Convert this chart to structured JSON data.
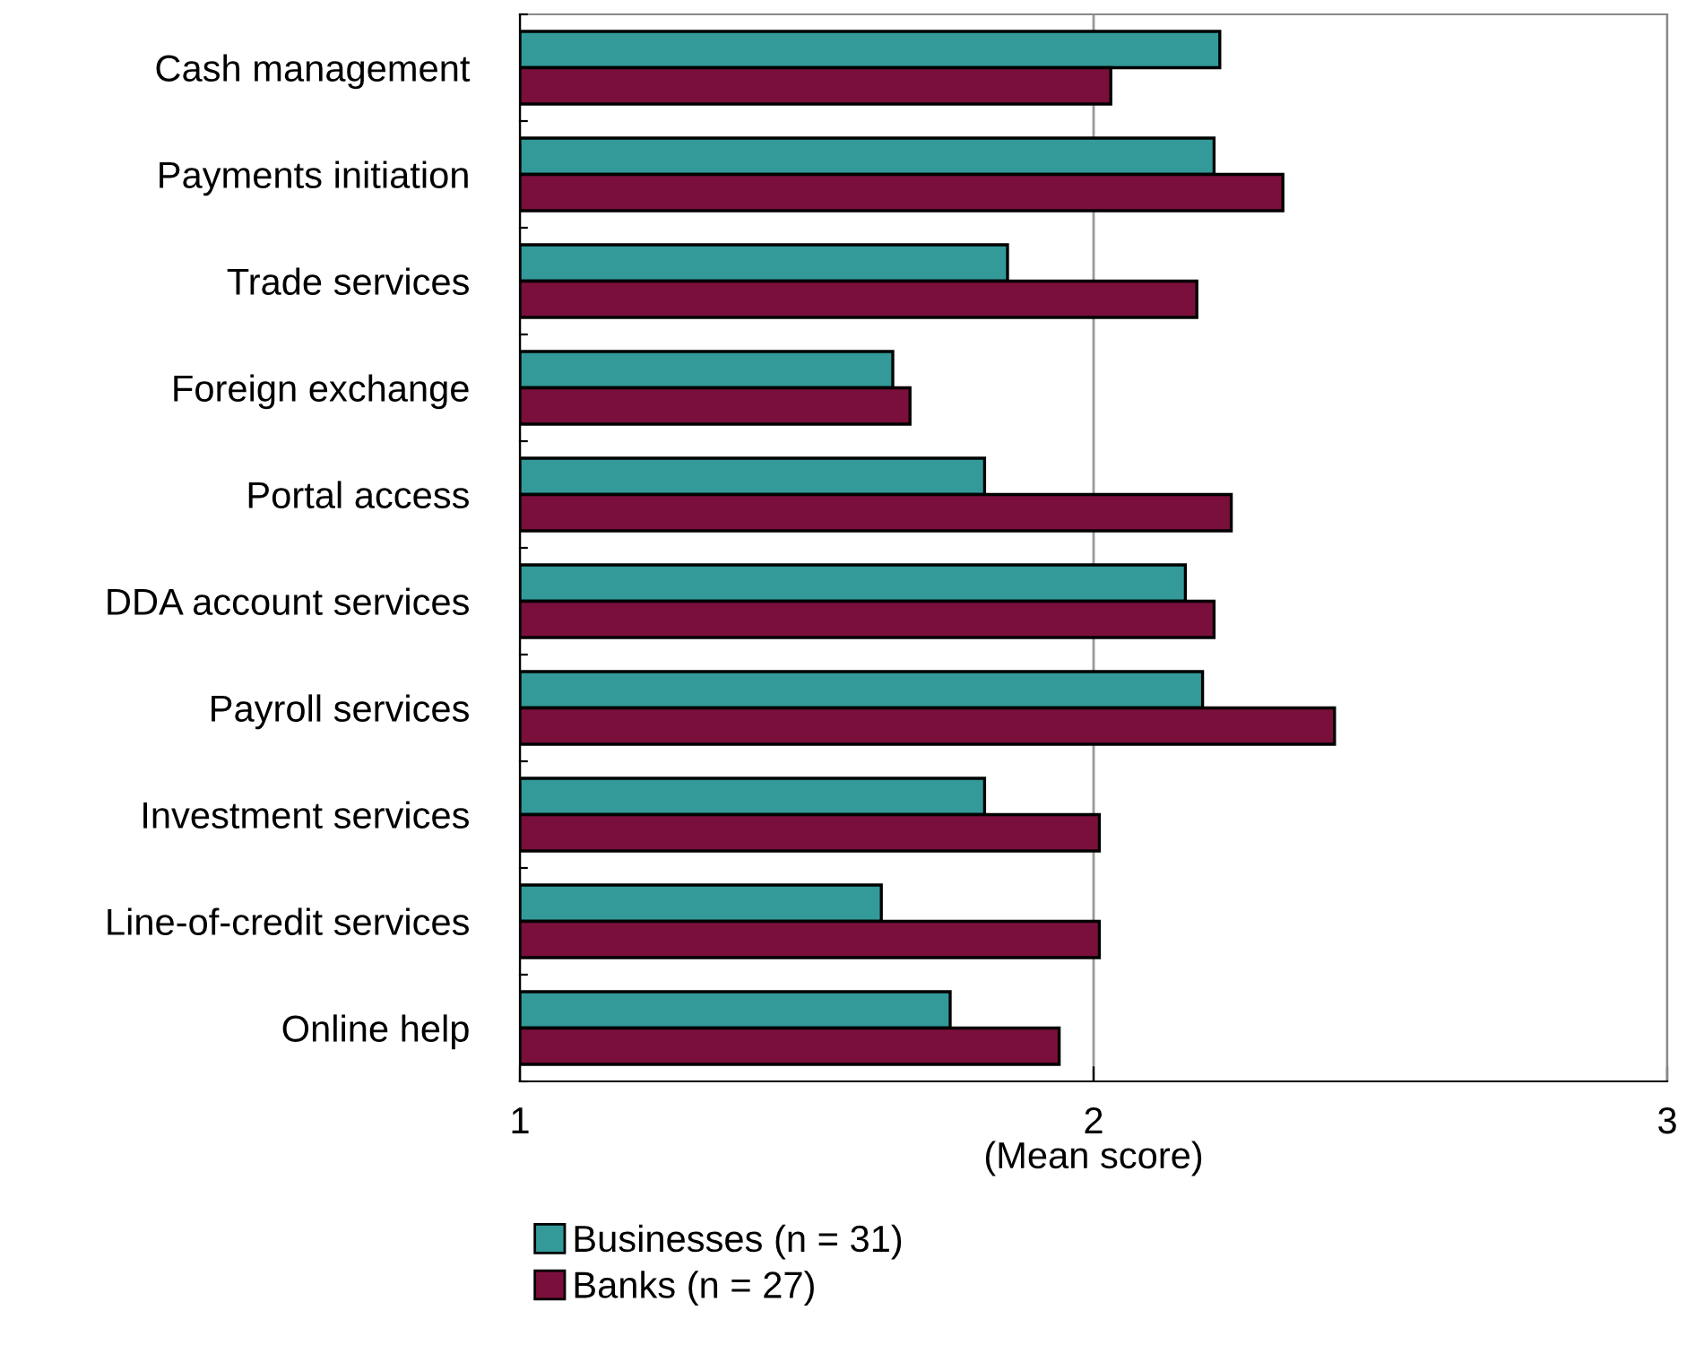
{
  "chart_data": {
    "type": "bar",
    "orientation": "horizontal",
    "xlabel": "(Mean score)",
    "categories": [
      "Cash management",
      "Payments initiation",
      "Trade services",
      "Foreign exchange",
      "Portal access",
      "DDA account services",
      "Payroll services",
      "Investment services",
      "Line-of-credit services",
      "Online help"
    ],
    "series": [
      {
        "name": "Businesses (n = 31)",
        "color": "#339999",
        "values": [
          2.22,
          2.21,
          1.85,
          1.65,
          1.81,
          2.16,
          2.19,
          1.81,
          1.63,
          1.75
        ]
      },
      {
        "name": "Banks (n = 27)",
        "color": "#7a0f3c",
        "values": [
          2.03,
          2.33,
          2.18,
          1.68,
          2.24,
          2.21,
          2.42,
          2.01,
          2.01,
          1.94
        ]
      }
    ],
    "xlim": [
      1,
      3
    ],
    "xticks": [
      1,
      2,
      3
    ],
    "grid": "x",
    "legend": "bottom"
  }
}
